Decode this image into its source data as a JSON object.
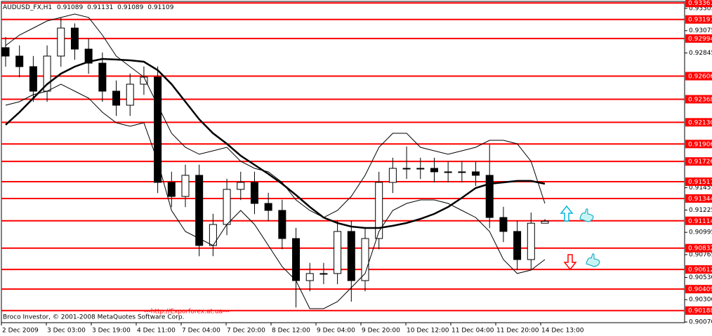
{
  "chart_data": {
    "type": "candlestick",
    "title": "AUDUSD_FX,H1",
    "copyright": "Broco Investor, © 2001-2008 MetaQuotes Software Corp.",
    "link": "---http://Exporforex.at.ua---",
    "link_color": "#ff0000",
    "x_labels": [
      "2 Dec 2009",
      "3 Dec 03:00",
      "3 Dec 19:00",
      "4 Dec 11:00",
      "7 Dec 04:00",
      "7 Dec 20:00",
      "8 Dec 12:00",
      "9 Dec 04:00",
      "9 Dec 20:00",
      "10 Dec 12:00",
      "11 Dec 04:00",
      "11 Dec 20:00",
      "14 Dec 13:00"
    ],
    "ylim": [
      0.90063,
      0.93377
    ],
    "yticks": [
      0.93305,
      0.93075,
      0.92845,
      0.91455,
      0.91225,
      0.90995,
      0.90765,
      {
        "value": 0.9053,
        "label": "0.90530"
      },
      {
        "value": 0.903,
        "label": "0.90300"
      },
      {
        "value": 0.9007,
        "label": "0.90070"
      }
    ],
    "level_color": "#ff0000",
    "levels": [
      {
        "value": 0.93361,
        "label": "0.93361"
      },
      {
        "value": 0.93191,
        "label": "0.93191"
      },
      {
        "value": 0.92994,
        "label": "0.92994"
      },
      {
        "value": 0.92606,
        "label": "0.92606"
      },
      {
        "value": 0.92368,
        "label": "0.92368"
      },
      {
        "value": 0.9213,
        "label": "0.92130"
      },
      {
        "value": 0.91906,
        "label": "0.91906"
      },
      {
        "value": 0.91726,
        "label": "0.91726"
      },
      {
        "value": 0.91517,
        "label": "0.91517"
      },
      {
        "value": 0.91344,
        "label": "0.91344"
      },
      {
        "value": 0.91114,
        "label": "0.91114"
      },
      {
        "value": 0.90832,
        "label": "0.90832"
      },
      {
        "value": 0.90612,
        "label": "0.90612"
      },
      {
        "value": 0.90409,
        "label": "0.90409"
      },
      {
        "value": 0.90188,
        "label": "0.90188"
      }
    ],
    "candle_color": "#000000",
    "open": [
      0.929,
      0.92813,
      0.92704,
      0.92451,
      0.92813,
      0.93102,
      0.92885,
      0.9274,
      0.92451,
      0.92306,
      0.92523,
      0.92596,
      0.9151,
      0.91365,
      0.91583,
      0.90859,
      0.91076,
      0.91438,
      0.9151,
      0.91293,
      0.91221,
      0.90931,
      0.90497,
      0.9057,
      0.9057,
      0.91004,
      0.90497,
      0.90931,
      0.9151,
      0.91655,
      0.91655,
      0.91655,
      0.91619,
      0.91619,
      0.91619,
      0.91583,
      0.91148,
      0.91004,
      0.90714,
      0.91089
    ],
    "high": [
      0.9301,
      0.92923,
      0.92814,
      0.92923,
      0.93212,
      0.9315,
      0.92995,
      0.9285,
      0.92561,
      0.92633,
      0.92706,
      0.92706,
      0.9162,
      0.91693,
      0.91693,
      0.91186,
      0.91548,
      0.9162,
      0.9162,
      0.91403,
      0.91331,
      0.91041,
      0.9068,
      0.9068,
      0.91114,
      0.91114,
      0.91041,
      0.9162,
      0.91765,
      0.9188,
      0.91765,
      0.91765,
      0.91729,
      0.91729,
      0.91729,
      0.919,
      0.91258,
      0.91114,
      0.91199,
      0.91131
    ],
    "low": [
      0.92703,
      0.92594,
      0.92341,
      0.92341,
      0.92703,
      0.92775,
      0.9263,
      0.92341,
      0.92196,
      0.92196,
      0.92413,
      0.914,
      0.91255,
      0.91255,
      0.90749,
      0.90749,
      0.90966,
      0.91328,
      0.91183,
      0.91111,
      0.90821,
      0.9022,
      0.90387,
      0.9046,
      0.9046,
      0.9028,
      0.90387,
      0.90821,
      0.914,
      0.91545,
      0.91545,
      0.91509,
      0.91509,
      0.91509,
      0.91473,
      0.91038,
      0.90894,
      0.90604,
      0.90604,
      0.91089
    ],
    "close": [
      0.92813,
      0.92704,
      0.92451,
      0.92813,
      0.93102,
      0.92885,
      0.9274,
      0.92451,
      0.92306,
      0.92523,
      0.92596,
      0.9151,
      0.91365,
      0.91583,
      0.90859,
      0.91076,
      0.91438,
      0.9151,
      0.91293,
      0.91221,
      0.90931,
      0.90497,
      0.9057,
      0.9057,
      0.91004,
      0.90497,
      0.90931,
      0.9151,
      0.91655,
      0.91655,
      0.91655,
      0.91619,
      0.91619,
      0.91619,
      0.91583,
      0.91148,
      0.91004,
      0.90714,
      0.91089,
      0.91109
    ],
    "lines": [
      {
        "color": "#000000",
        "values": [
          0.92104,
          0.92234,
          0.92379,
          0.92523,
          0.92632,
          0.92704,
          0.92755,
          0.92784,
          0.92777,
          0.92769,
          0.92755,
          0.92668,
          0.92523,
          0.92342,
          0.92161,
          0.92017,
          0.91908,
          0.91785,
          0.91691,
          0.91597,
          0.91496,
          0.9138,
          0.91257,
          0.91148,
          0.91091,
          0.91054,
          0.9104,
          0.9104,
          0.91062,
          0.91091,
          0.91134,
          0.91185,
          0.91257,
          0.91351,
          0.91452,
          0.91496,
          0.9151,
          0.91525,
          0.91525,
          0.91496
        ]
      },
      {
        "color": "#000000",
        "values": [
          0.92921,
          0.9303,
          0.93102,
          0.93175,
          0.93211,
          0.93247,
          0.93211,
          0.9303,
          0.92813,
          0.92704,
          0.92596,
          0.92306,
          0.92017,
          0.91872,
          0.918,
          0.91836,
          0.91872,
          0.91727,
          0.91655,
          0.91619,
          0.9151,
          0.91329,
          0.91221,
          0.91148,
          0.91221,
          0.91366,
          0.91583,
          0.91872,
          0.92017,
          0.92017,
          0.91872,
          0.91836,
          0.918,
          0.91836,
          0.91872,
          0.91944,
          0.91944,
          0.91908,
          0.91727,
          0.91293
        ]
      },
      {
        "color": "#000000",
        "values": [
          0.92306,
          0.92342,
          0.92415,
          0.92451,
          0.92523,
          0.92451,
          0.92379,
          0.92234,
          0.92125,
          0.92089,
          0.92125,
          0.91727,
          0.91221,
          0.91004,
          0.90931,
          0.90859,
          0.91076,
          0.91221,
          0.91076,
          0.90859,
          0.90642,
          0.90497,
          0.90208,
          0.90208,
          0.9028,
          0.90425,
          0.9057,
          0.91004,
          0.91221,
          0.91293,
          0.91329,
          0.91329,
          0.91293,
          0.91221,
          0.91148,
          0.91004,
          0.90714,
          0.9057,
          0.90606,
          0.90714
        ]
      }
    ]
  }
}
